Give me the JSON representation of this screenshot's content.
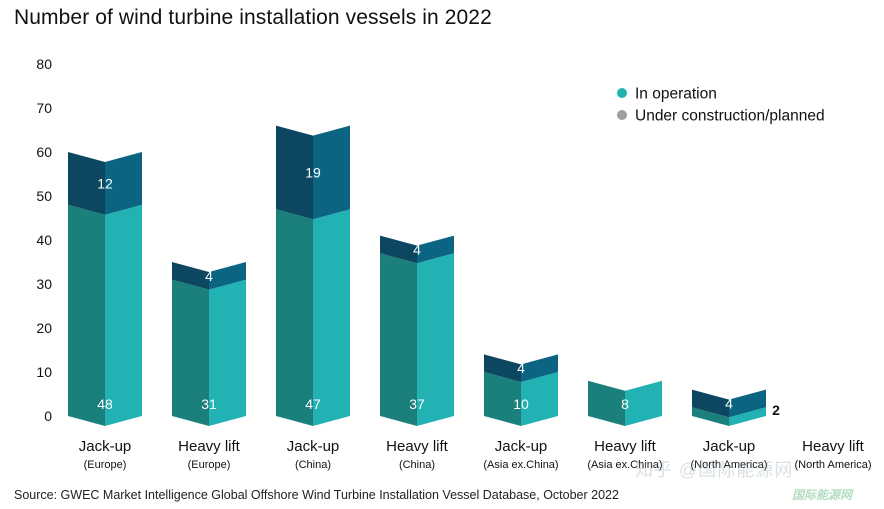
{
  "chart_data": {
    "type": "bar",
    "stacked": true,
    "title": "Number of wind turbine installation vessels in 2022",
    "categories": [
      {
        "main": "Jack-up",
        "sub": "(Europe)"
      },
      {
        "main": "Heavy lift",
        "sub": "(Europe)"
      },
      {
        "main": "Jack-up",
        "sub": "(China)"
      },
      {
        "main": "Heavy lift",
        "sub": "(China)"
      },
      {
        "main": "Jack-up",
        "sub": "(Asia ex.China)"
      },
      {
        "main": "Heavy lift",
        "sub": "(Asia ex.China)"
      },
      {
        "main": "Jack-up",
        "sub": "(North America)"
      },
      {
        "main": "Heavy lift",
        "sub": "(North America)"
      }
    ],
    "series": [
      {
        "name": "In operation",
        "values": [
          48,
          31,
          47,
          37,
          10,
          8,
          2,
          0
        ],
        "labels": [
          "48",
          "31",
          "47",
          "37",
          "10",
          "8",
          "2",
          ""
        ]
      },
      {
        "name": "Under construction/planned",
        "values": [
          12,
          4,
          19,
          4,
          4,
          0,
          4,
          0
        ],
        "labels": [
          "12",
          "4",
          "19",
          "4",
          "4",
          "",
          "4",
          ""
        ]
      }
    ],
    "yticks": [
      0,
      10,
      20,
      30,
      40,
      50,
      60,
      70,
      80
    ],
    "ylim": [
      0,
      80
    ],
    "legend_position": "top-right",
    "colors": {
      "op_left": "#1b7f7b",
      "op_right": "#22b2b3",
      "plan_left": "#0c4660",
      "plan_right": "#0b6482",
      "legend_op": "#22b2b3",
      "legend_plan": "#9e9e9e"
    }
  },
  "source": "Source: GWEC Market Intelligence Global Offshore Wind Turbine Installation Vessel Database, October 2022",
  "watermark": "知乎 @国际能源网",
  "watermark2": "国际能源网"
}
